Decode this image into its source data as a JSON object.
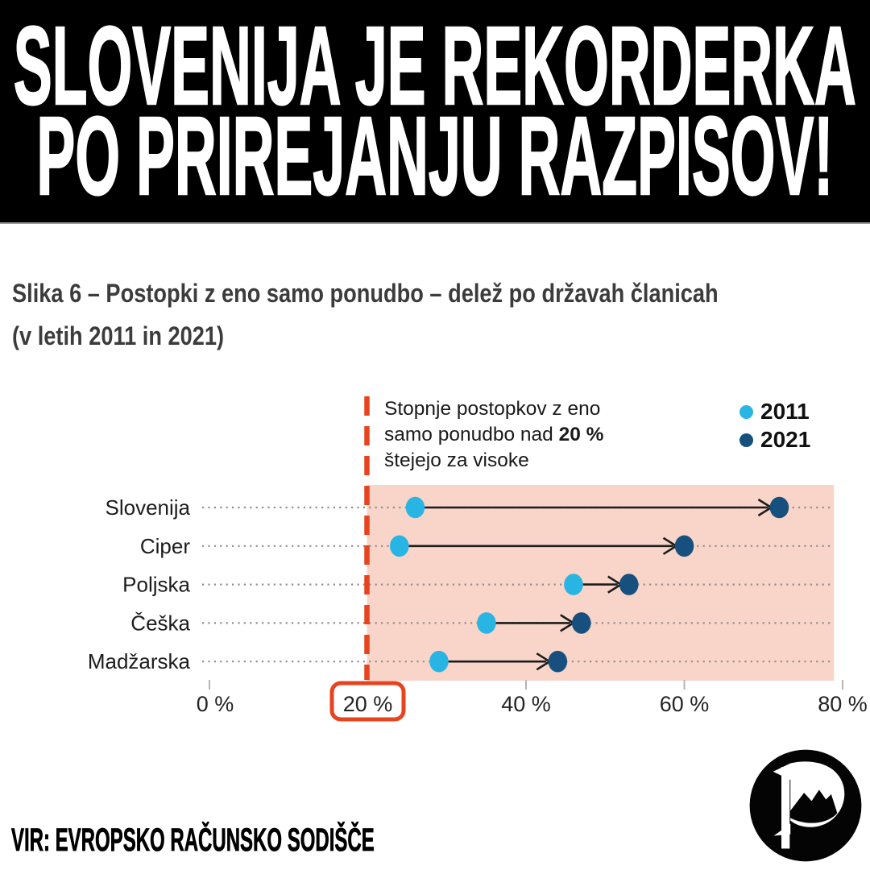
{
  "banner": {
    "line1": "SLOVENIJA JE REKORDERKA",
    "line2": "PO PRIREJANJU RAZPISOV!"
  },
  "figure": {
    "title_line1": "Slika 6 – Postopki z eno samo ponudbo – delež po državah članicah",
    "title_line2": "(v letih 2011 in 2021)"
  },
  "annotation": {
    "line1": "Stopnje postopkov z eno",
    "line2_prefix": "samo ponudbo nad ",
    "line2_bold": "20 %",
    "line3": "štejejo za visoke"
  },
  "chart_data": {
    "type": "scatter",
    "variant": "dumbbell-arrow",
    "categories": [
      "Slovenija",
      "Ciper",
      "Poljska",
      "Češka",
      "Madžarska"
    ],
    "series": [
      {
        "name": "2011",
        "color": "#29b5e4",
        "values": [
          26,
          24,
          46,
          35,
          29
        ]
      },
      {
        "name": "2021",
        "color": "#17507e",
        "values": [
          72,
          60,
          53,
          47,
          44
        ]
      }
    ],
    "xlim": [
      0,
      80
    ],
    "tick_values": [
      0,
      20,
      40,
      60,
      80
    ],
    "tick_labels": [
      "0 %",
      "20 %",
      "40 %",
      "60 %",
      "80 %"
    ],
    "threshold_value": 20,
    "threshold_label": "20 %",
    "threshold_color": "#e8431f",
    "highlight_region_color": "#f8d5c8",
    "grid": "dotted-row-leaders",
    "legend_position": "top-right",
    "arrow_color": "#1c1c1c"
  },
  "source": {
    "label": "VIR: EVROPSKO RAČUNSKO SODIŠČE"
  },
  "logo": {
    "name": "pirate-party-logo"
  }
}
